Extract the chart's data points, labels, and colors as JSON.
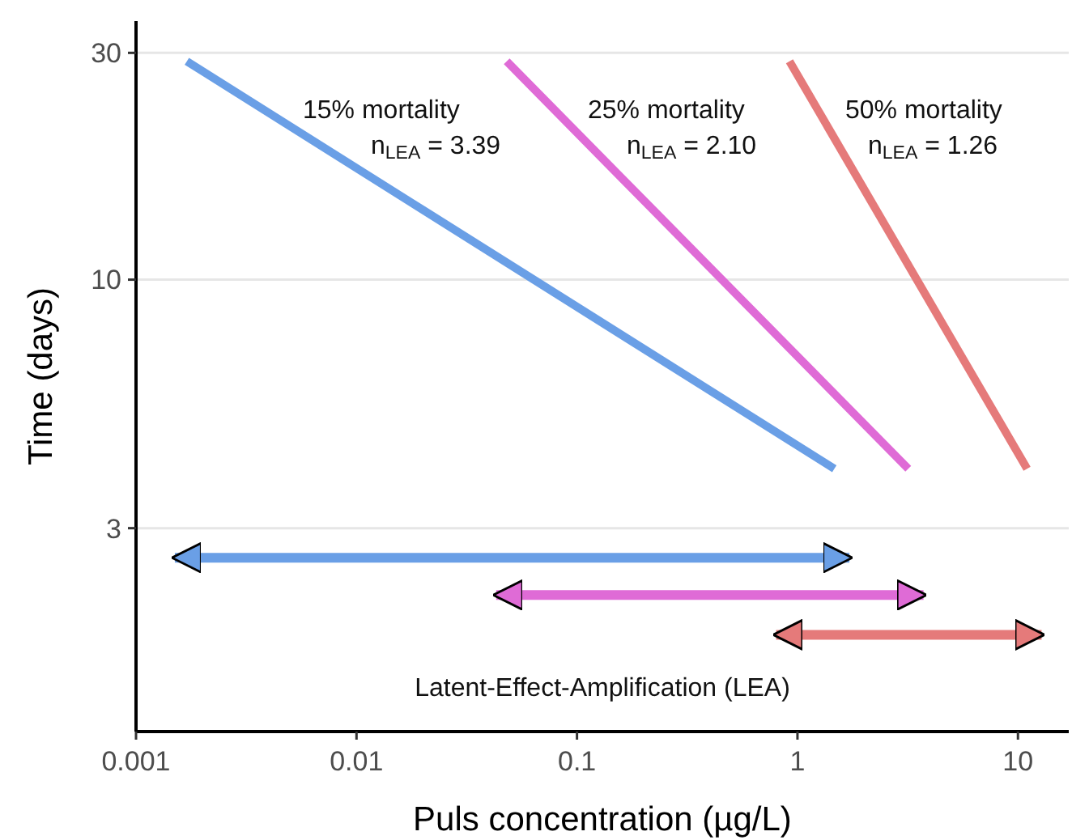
{
  "chart_data": {
    "type": "line",
    "xlabel": "Puls concentration (µg/L)",
    "ylabel": "Time (days)",
    "log": "xy",
    "grid": "y",
    "xlim": [
      0.001,
      17
    ],
    "xticks": [
      0.001,
      0.01,
      0.1,
      1,
      10
    ],
    "ylim": [
      1.12,
      35
    ],
    "yticks": [
      3,
      10,
      30
    ],
    "series": [
      {
        "color": "#6a9fe6",
        "x": [
          0.0017,
          1.47
        ],
        "values": [
          28.8,
          4
        ]
      },
      {
        "color": "#df6bd6",
        "x": [
          0.048,
          3.18
        ],
        "values": [
          28.8,
          4
        ]
      },
      {
        "color": "#e57a7a",
        "x": [
          0.92,
          11
        ],
        "values": [
          28.8,
          4
        ]
      },
      {
        "type": "step",
        "color": "#6a9fe6",
        "x": [
          0.0015,
          1.72
        ],
        "values": [
          2.6,
          2.6
        ]
      },
      {
        "type": "step",
        "color": "#df6bd6",
        "x": [
          0.043,
          3.73
        ],
        "values": [
          2.17,
          2.17
        ]
      },
      {
        "type": "step",
        "color": "#e57a7a",
        "x": [
          0.8,
          12.8
        ],
        "values": [
          1.79,
          1.79
        ]
      }
    ],
    "annotations": [
      "15% mortality",
      "n$_{LEA}$ = 3.39",
      "25% mortality",
      "n$_{LEA}$ = 2.10",
      "50% mortality",
      "n$_{LEA}$ = 1.26",
      "Latent-Effect-Amplification (LEA)"
    ]
  }
}
